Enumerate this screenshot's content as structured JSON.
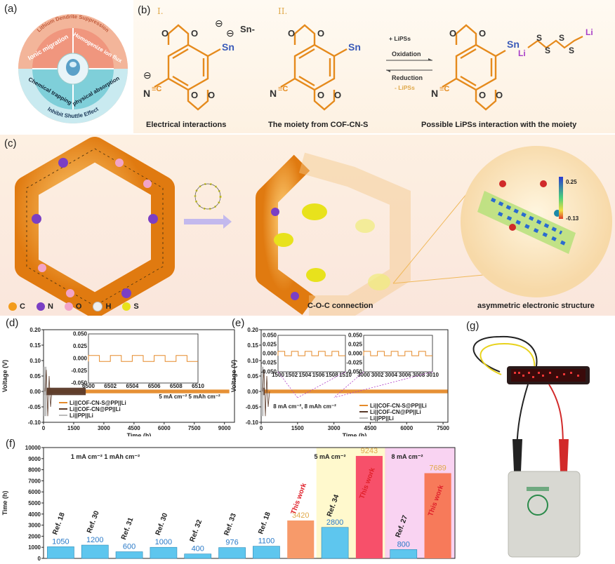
{
  "panel_letters": {
    "a": "(a)",
    "b": "(b)",
    "c": "(c)",
    "d": "(d)",
    "e": "(e)",
    "f": "(f)",
    "g": "(g)"
  },
  "a": {
    "outer_top": "Lithium Dendrite Suppression",
    "outer_bottom": "Inhibit Shuttle Effect",
    "q1": "Ionic migration",
    "q2": "Homogenize ion flux",
    "q3": "Chemical trapping",
    "q4": "physical absorption"
  },
  "b": {
    "roman1": "I.",
    "roman2": "II.",
    "sn": "Sn",
    "sn_minus": "Sn-",
    "li": "Li",
    "s": "S",
    "arrow_top1": "+ LiPSs",
    "arrow_top2": "Oxidation",
    "arrow_bot1": "Reduction",
    "arrow_bot2": "- LiPSs",
    "cap1": "Electrical interactions",
    "cap2": "The moiety from COF-CN-S",
    "cap3": "Possible LiPSs interaction with the moiety"
  },
  "c": {
    "legend": [
      {
        "label": "C",
        "color": "#f39c1c"
      },
      {
        "label": "N",
        "color": "#7b3fc4"
      },
      {
        "label": "O",
        "color": "#f2a4c8"
      },
      {
        "label": "H",
        "color": "#eeeeee"
      },
      {
        "label": "S",
        "color": "#e8e21c"
      }
    ],
    "cap_mid": "C-O-C connection",
    "cap_right": "asymmetric electronic structure",
    "scale_max": "0.25",
    "scale_min": "-0.13"
  },
  "g": {
    "label": "(g)"
  },
  "chart_data": [
    {
      "panel": "d",
      "type": "line",
      "xlabel": "Time (h)",
      "ylabel": "Voltage (V)",
      "xlim": [
        0,
        9500
      ],
      "ylim": [
        -0.1,
        0.2
      ],
      "xticks": [
        "0",
        "1500",
        "3000",
        "4500",
        "6000",
        "7500",
        "9000"
      ],
      "yticks": [
        "-0.10",
        "-0.05",
        "0.00",
        "0.05",
        "0.10",
        "0.15",
        "0.20"
      ],
      "annotation": "5 mA cm⁻² 5 mAh cm⁻²",
      "series": [
        {
          "name": "Li||COF-CN-S@PP||Li",
          "color": "#e58a2a",
          "duration_h": 9243,
          "amplitude_v": 0.006
        },
        {
          "name": "Li||COF-CN@PP||Li",
          "color": "#5a3a2a",
          "duration_h": 2100,
          "amplitude_v": 0.012
        },
        {
          "name": "Li||PP||Li",
          "color": "#bbbbbb",
          "duration_h": 150,
          "amplitude_v": 0.08
        }
      ],
      "inset": {
        "xlim": [
          6500,
          6510
        ],
        "ylim": [
          -0.05,
          0.05
        ],
        "xticks": [
          "6500",
          "6502",
          "6504",
          "6506",
          "6508",
          "6510"
        ],
        "yticks": [
          "-0.050",
          "-0.025",
          "0.000",
          "0.025",
          "0.050"
        ]
      }
    },
    {
      "panel": "e",
      "type": "line",
      "xlabel": "Time (h)",
      "ylabel": "Voltage (V)",
      "xlim": [
        0,
        7700
      ],
      "ylim": [
        -0.1,
        0.2
      ],
      "xticks": [
        "0",
        "1500",
        "3000",
        "4500",
        "6000",
        "7500"
      ],
      "yticks": [
        "-0.10",
        "-0.05",
        "0.00",
        "0.05",
        "0.10",
        "0.15",
        "0.20"
      ],
      "annotation": "8 mA cm⁻², 8 mAh cm⁻²",
      "series": [
        {
          "name": "Li||COF-CN-S@PP||Li",
          "color": "#e58a2a",
          "duration_h": 7689
        },
        {
          "name": "Li||COF-CN@PP||Li",
          "color": "#5a3a2a",
          "duration_h": 150
        },
        {
          "name": "Li||PP||Li",
          "color": "#bbbbbb",
          "duration_h": 100
        }
      ],
      "insets": [
        {
          "xlim": [
            1500,
            1510
          ],
          "xticks": [
            "1500",
            "1502",
            "1504",
            "1506",
            "1508",
            "1510"
          ],
          "yticks": [
            "-0.050",
            "-0.025",
            "0.000",
            "0.025",
            "0.050"
          ]
        },
        {
          "xlim": [
            3000,
            3010
          ],
          "xticks": [
            "3000",
            "3002",
            "3004",
            "3006",
            "3008",
            "3010"
          ],
          "yticks": [
            "-0.050",
            "-0.025",
            "0.000",
            "0.025",
            "0.050"
          ]
        }
      ]
    },
    {
      "panel": "f",
      "type": "bar",
      "ylabel": "Time (h)",
      "ylim": [
        0,
        10000
      ],
      "yticks": [
        "0",
        "1000",
        "2000",
        "3000",
        "4000",
        "5000",
        "6000",
        "7000",
        "8000",
        "9000",
        "10000"
      ],
      "groups": [
        {
          "label": "1 mA cm⁻²  1 mAh cm⁻²",
          "start": 0,
          "end": 7
        },
        {
          "label": "5 mA cm⁻²",
          "start": 8,
          "end": 9
        },
        {
          "label": "8 mA cm⁻²",
          "start": 10,
          "end": 11
        }
      ],
      "categories": [
        "Ref. 18",
        "Ref. 30",
        "Ref. 31",
        "Ref. 30",
        "Ref. 32",
        "Ref. 33",
        "Ref. 18",
        "This work",
        "Ref. 34",
        "This work",
        "Ref. 27",
        "This work"
      ],
      "values": [
        1050,
        1200,
        600,
        1000,
        400,
        976,
        1100,
        3420,
        2800,
        9243,
        800,
        7689
      ],
      "this_work": [
        false,
        false,
        false,
        false,
        false,
        false,
        false,
        true,
        false,
        true,
        false,
        true
      ]
    }
  ]
}
